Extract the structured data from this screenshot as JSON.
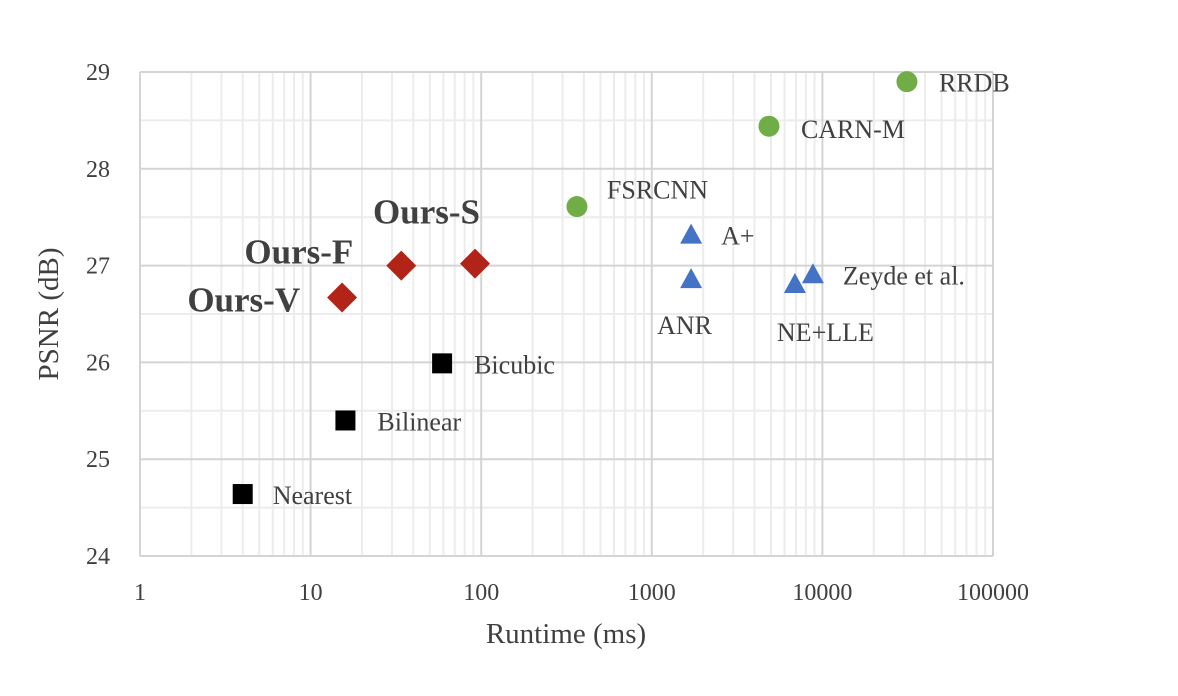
{
  "chart_data": {
    "type": "scatter",
    "title": "",
    "xlabel": "Runtime (ms)",
    "ylabel": "PSNR (dB)",
    "xscale": "log",
    "xlim": [
      1,
      100000
    ],
    "ylim": [
      24,
      29
    ],
    "xticks": [
      "1",
      "10",
      "100",
      "1000",
      "10000",
      "100000"
    ],
    "yticks": [
      "24",
      "25",
      "26",
      "27",
      "28",
      "29"
    ],
    "grid": true,
    "legend": "none",
    "colors": {
      "ours": "#B22418",
      "deep": "#70AD47",
      "classical": "#4472C4",
      "interp": "#000000"
    },
    "points": [
      {
        "label": "Nearest",
        "x": 4,
        "y": 24.64,
        "group": "interp",
        "marker": "square"
      },
      {
        "label": "Bilinear",
        "x": 16,
        "y": 25.4,
        "group": "interp",
        "marker": "square"
      },
      {
        "label": "Bicubic",
        "x": 59,
        "y": 25.99,
        "group": "interp",
        "marker": "square"
      },
      {
        "label": "Ours-V",
        "x": 15.3,
        "y": 26.67,
        "group": "ours",
        "marker": "diamond"
      },
      {
        "label": "Ours-F",
        "x": 34,
        "y": 27.0,
        "group": "ours",
        "marker": "diamond"
      },
      {
        "label": "Ours-S",
        "x": 92,
        "y": 27.02,
        "group": "ours",
        "marker": "diamond"
      },
      {
        "label": "FSRCNN",
        "x": 364,
        "y": 27.61,
        "group": "deep",
        "marker": "circle"
      },
      {
        "label": "A+",
        "x": 1700,
        "y": 27.32,
        "group": "classical",
        "marker": "triangle"
      },
      {
        "label": "ANR",
        "x": 1700,
        "y": 26.86,
        "group": "classical",
        "marker": "triangle"
      },
      {
        "label": "NE+LLE",
        "x": 6900,
        "y": 26.81,
        "group": "classical",
        "marker": "triangle"
      },
      {
        "label": "Zeyde et al.",
        "x": 8800,
        "y": 26.91,
        "group": "classical",
        "marker": "triangle"
      },
      {
        "label": "CARN-M",
        "x": 4860,
        "y": 28.44,
        "group": "deep",
        "marker": "circle"
      },
      {
        "label": "RRDB",
        "x": 31300,
        "y": 28.9,
        "group": "deep",
        "marker": "circle"
      }
    ]
  }
}
